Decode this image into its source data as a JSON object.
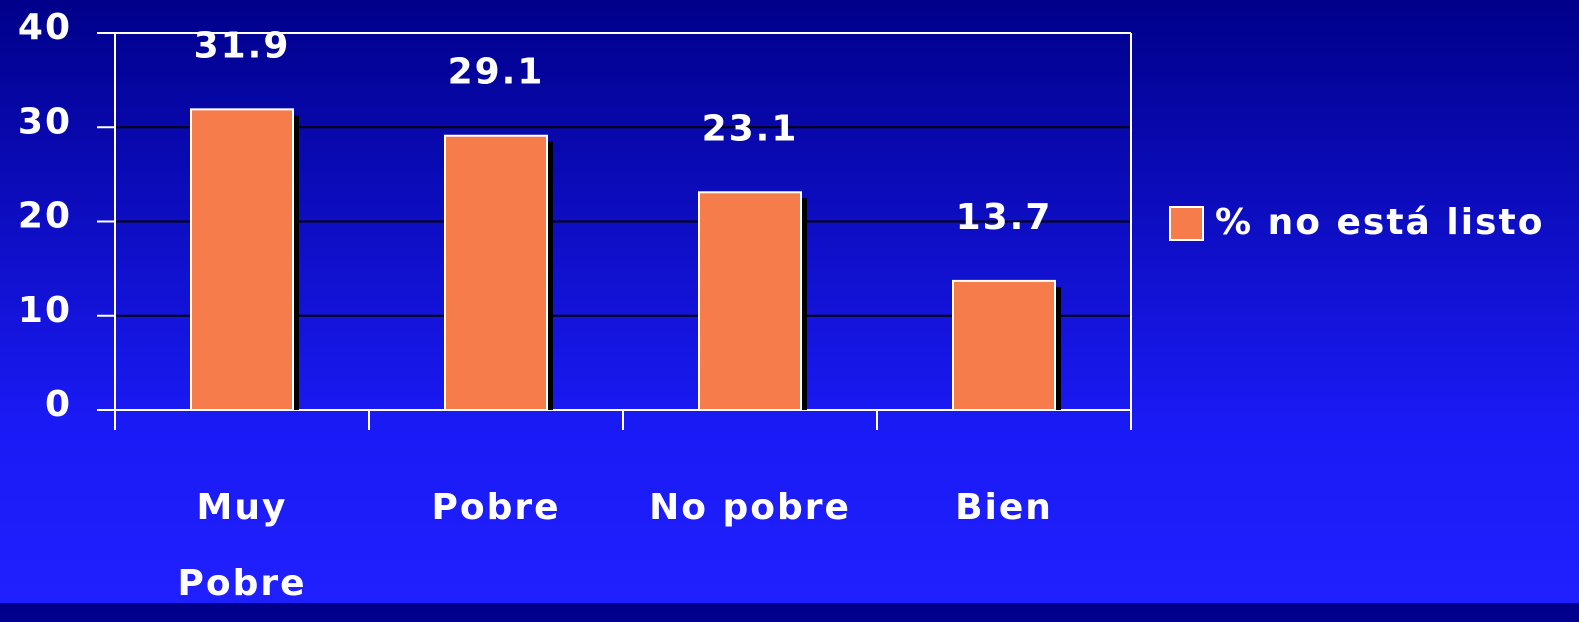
{
  "chart_data": {
    "type": "bar",
    "categories": [
      "Muy Pobre",
      "Pobre",
      "No pobre",
      "Bien"
    ],
    "series": [
      {
        "name": "% no está listo",
        "color": "#f77c4c",
        "values": [
          31.9,
          29.1,
          23.1,
          13.7
        ]
      }
    ],
    "ylim": [
      0,
      40
    ],
    "yticks": [
      0,
      10,
      20,
      30,
      40
    ],
    "grid": true,
    "legend": "right"
  }
}
